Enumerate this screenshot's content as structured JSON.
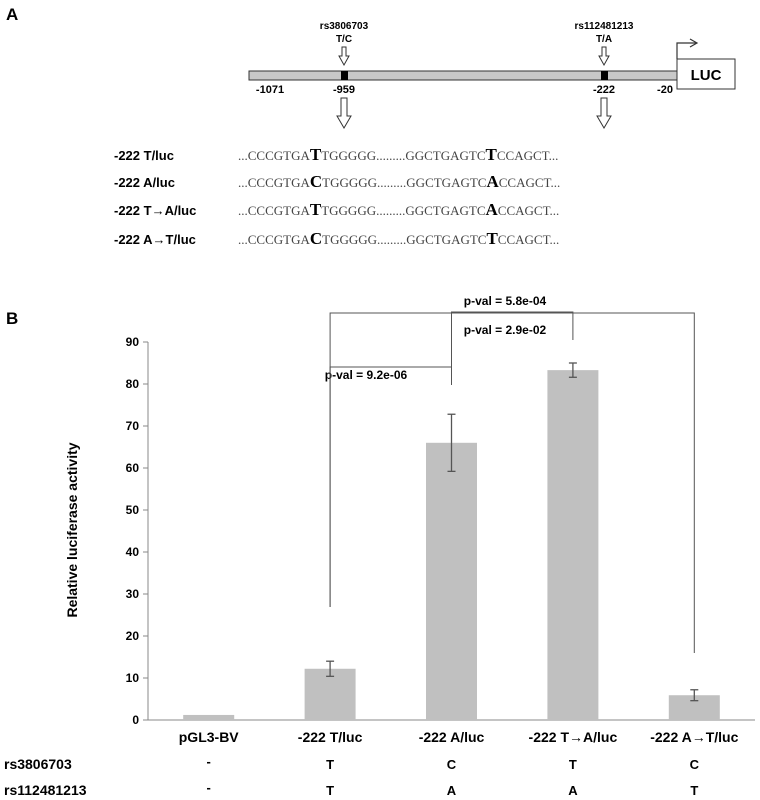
{
  "panel_a": {
    "panel_label": "A",
    "snp1": {
      "id": "rs3806703",
      "alleles": "T/C",
      "position": "-959"
    },
    "snp2": {
      "id": "rs112481213",
      "alleles": "T/A",
      "position": "-222"
    },
    "start_label": "-1071",
    "end_label": "-20",
    "reporter_label": "LUC",
    "constructs": [
      {
        "name": "-222 T/luc",
        "seq_left": "...CCCGTGA",
        "allele1": "T",
        "seq_mid": "TGGGGG.........GGCTGAGTC",
        "allele2": "T",
        "seq_right": "CCAGCT..."
      },
      {
        "name": "-222 A/luc",
        "seq_left": "...CCCGTGA",
        "allele1": "C",
        "seq_mid": "TGGGGG.........GGCTGAGTC",
        "allele2": "A",
        "seq_right": "CCAGCT..."
      },
      {
        "name": "-222 T→A/luc",
        "seq_left": "...CCCGTGA",
        "allele1": "T",
        "seq_mid": "TGGGGG.........GGCTGAGTC",
        "allele2": "A",
        "seq_right": "CCAGCT..."
      },
      {
        "name": "-222 A→T/luc",
        "seq_left": "...CCCGTGA",
        "allele1": "C",
        "seq_mid": "TGGGGG.........GGCTGAGTC",
        "allele2": "T",
        "seq_right": "CCAGCT..."
      }
    ]
  },
  "panel_b": {
    "panel_label": "B",
    "bar_color": "#c0c0c0",
    "errorbar_color": "#555555",
    "bracket_color": "#555555"
  },
  "chart_data": {
    "type": "bar",
    "categories": [
      "pGL3-BV",
      "-222 T/luc",
      "-222 A/luc",
      "-222 T→A/luc",
      "-222 A→T/luc"
    ],
    "values": [
      1.2,
      12.2,
      66.0,
      83.3,
      5.9
    ],
    "errors": [
      0,
      1.8,
      6.8,
      1.7,
      1.3
    ],
    "ylabel": "Relative luciferase activity",
    "xlabel": "",
    "ylim": [
      0,
      90
    ],
    "yticks": [
      0,
      10,
      20,
      30,
      40,
      50,
      60,
      70,
      80,
      90
    ],
    "grid": false,
    "comparisons": [
      {
        "from": 1,
        "to": 2,
        "label": "p-val = 9.2e-06"
      },
      {
        "from": 2,
        "to": 3,
        "label": "p-val = 2.9e-02"
      },
      {
        "from": 1,
        "to": 4,
        "label": "p-val = 5.8e-04"
      }
    ],
    "genotype_rows": [
      {
        "label": "rs3806703",
        "values": [
          "-",
          "T",
          "C",
          "T",
          "C"
        ]
      },
      {
        "label": "rs112481213",
        "values": [
          "-",
          "T",
          "A",
          "A",
          "T"
        ]
      }
    ]
  }
}
